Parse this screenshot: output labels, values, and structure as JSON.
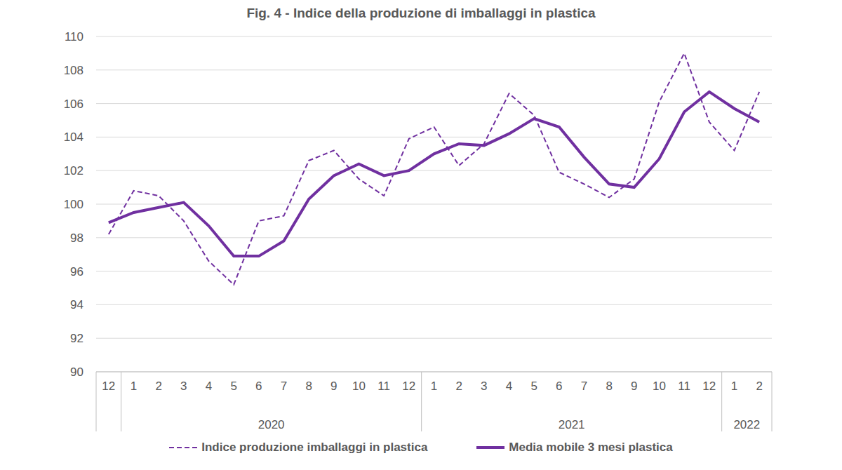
{
  "chart_data": {
    "type": "line",
    "title": "Fig. 4 - Indice della produzione di imballaggi in plastica",
    "categories": [
      "12",
      "1",
      "2",
      "3",
      "4",
      "5",
      "6",
      "7",
      "8",
      "9",
      "10",
      "11",
      "12",
      "1",
      "2",
      "3",
      "4",
      "5",
      "6",
      "7",
      "8",
      "9",
      "10",
      "11",
      "12",
      "1",
      "2"
    ],
    "x_groups": [
      {
        "label": "2020",
        "from": 1,
        "to": 12
      },
      {
        "label": "2021",
        "from": 13,
        "to": 24
      },
      {
        "label": "2022",
        "from": 25,
        "to": 26
      }
    ],
    "series": [
      {
        "name": "Indice produzione imballaggi in plastica",
        "color": "#7030a0",
        "line_style": "dashed",
        "values": [
          98.2,
          100.8,
          100.5,
          99.0,
          96.6,
          95.2,
          99.0,
          99.3,
          102.6,
          103.2,
          101.5,
          100.5,
          103.9,
          104.6,
          102.3,
          103.6,
          106.6,
          105.3,
          101.9,
          101.2,
          100.4,
          101.5,
          106.1,
          109.0,
          104.9,
          103.2,
          106.7
        ]
      },
      {
        "name": "Media mobile 3 mesi plastica",
        "color": "#7030a0",
        "line_style": "solid",
        "values": [
          98.9,
          99.5,
          99.8,
          100.1,
          98.7,
          96.9,
          96.9,
          97.8,
          100.3,
          101.7,
          102.4,
          101.7,
          102.0,
          103.0,
          103.6,
          103.5,
          104.2,
          105.1,
          104.6,
          102.8,
          101.2,
          101.0,
          102.7,
          105.5,
          106.7,
          105.7,
          104.9
        ]
      }
    ],
    "ylim": [
      90,
      110
    ],
    "yticks": [
      90,
      92,
      94,
      96,
      98,
      100,
      102,
      104,
      106,
      108,
      110
    ],
    "grid": true,
    "legend": "bottom"
  }
}
